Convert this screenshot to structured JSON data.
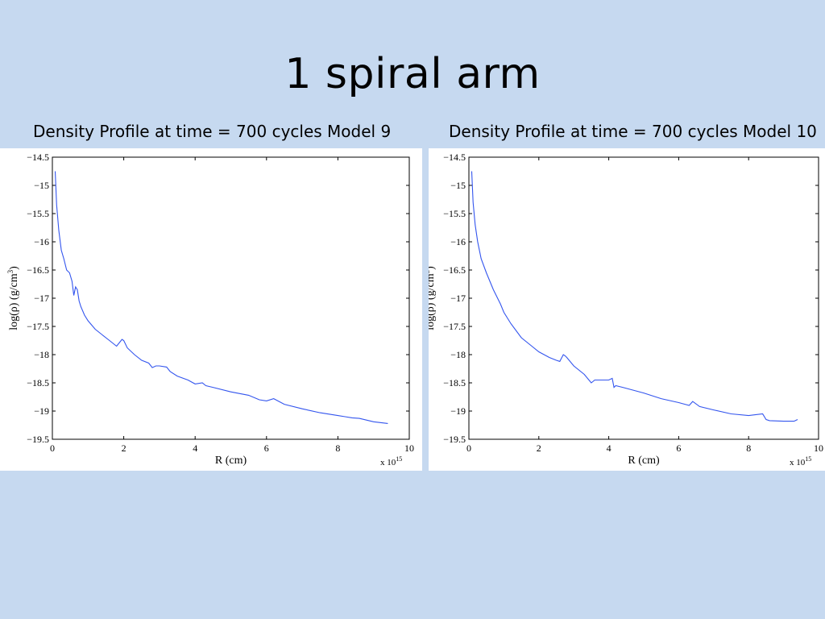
{
  "slide": {
    "title": "1 spiral arm"
  },
  "colors": {
    "background": "#c6d9f0",
    "line": "#3355ee"
  },
  "chart_data": [
    {
      "type": "line",
      "title": "Density Profile at time = 700 cycles Model 9",
      "xlabel": "R (cm)",
      "ylabel": "log(ρ) (g/cm3)",
      "x_multiplier": "x 10",
      "x_exponent": "15",
      "xlim": [
        0,
        10
      ],
      "ylim": [
        -19.5,
        -14.5
      ],
      "xticks": [
        "0",
        "2",
        "4",
        "6",
        "8",
        "10"
      ],
      "yticks": [
        "-14.5",
        "-15",
        "-15.5",
        "-16",
        "-16.5",
        "-17",
        "-17.5",
        "-18",
        "-18.5",
        "-19",
        "-19.5"
      ],
      "grid": false,
      "series": [
        {
          "x": [
            0.08,
            0.12,
            0.18,
            0.25,
            0.32,
            0.4,
            0.48,
            0.55,
            0.6,
            0.65,
            0.7,
            0.75,
            0.8,
            0.9,
            1.0,
            1.2,
            1.4,
            1.6,
            1.8,
            1.95,
            2.0,
            2.1,
            2.3,
            2.5,
            2.7,
            2.8,
            2.9,
            3.0,
            3.2,
            3.3,
            3.5,
            3.8,
            4.0,
            4.2,
            4.3,
            4.5,
            5.0,
            5.5,
            5.8,
            6.0,
            6.2,
            6.5,
            7.0,
            7.5,
            8.0,
            8.2,
            8.4,
            8.6,
            9.0,
            9.4
          ],
          "y": [
            -14.75,
            -15.35,
            -15.8,
            -16.15,
            -16.3,
            -16.5,
            -16.55,
            -16.7,
            -16.95,
            -16.8,
            -16.85,
            -17.05,
            -17.15,
            -17.3,
            -17.4,
            -17.55,
            -17.65,
            -17.75,
            -17.85,
            -17.73,
            -17.75,
            -17.88,
            -18.0,
            -18.1,
            -18.15,
            -18.23,
            -18.2,
            -18.2,
            -18.22,
            -18.3,
            -18.38,
            -18.45,
            -18.52,
            -18.5,
            -18.55,
            -18.58,
            -18.66,
            -18.72,
            -18.8,
            -18.82,
            -18.78,
            -18.88,
            -18.96,
            -19.03,
            -19.08,
            -19.1,
            -19.12,
            -19.13,
            -19.19,
            -19.22
          ]
        }
      ]
    },
    {
      "type": "line",
      "title": "Density Profile at time = 700 cycles Model 10",
      "xlabel": "R (cm)",
      "ylabel": "log(ρ) (g/cm3)",
      "x_multiplier": "x 10",
      "x_exponent": "15",
      "xlim": [
        0,
        10
      ],
      "ylim": [
        -19.5,
        -14.5
      ],
      "xticks": [
        "0",
        "2",
        "4",
        "6",
        "8",
        "10"
      ],
      "yticks": [
        "-14.5",
        "-15",
        "-15.5",
        "-16",
        "-16.5",
        "-17",
        "-17.5",
        "-18",
        "-18.5",
        "-19",
        "-19.5"
      ],
      "grid": false,
      "series": [
        {
          "x": [
            0.08,
            0.12,
            0.18,
            0.25,
            0.35,
            0.5,
            0.7,
            0.9,
            1.0,
            1.2,
            1.5,
            1.8,
            2.0,
            2.3,
            2.5,
            2.6,
            2.7,
            2.75,
            2.8,
            3.0,
            3.3,
            3.5,
            3.6,
            3.8,
            4.0,
            4.1,
            4.15,
            4.2,
            4.4,
            5.0,
            5.5,
            6.0,
            6.3,
            6.4,
            6.6,
            7.0,
            7.5,
            8.0,
            8.4,
            8.5,
            8.6,
            9.0,
            9.3,
            9.4
          ],
          "y": [
            -14.75,
            -15.3,
            -15.7,
            -16.0,
            -16.3,
            -16.55,
            -16.85,
            -17.1,
            -17.25,
            -17.45,
            -17.7,
            -17.85,
            -17.95,
            -18.05,
            -18.1,
            -18.12,
            -18.0,
            -18.02,
            -18.05,
            -18.2,
            -18.35,
            -18.5,
            -18.45,
            -18.45,
            -18.45,
            -18.42,
            -18.58,
            -18.55,
            -18.58,
            -18.68,
            -18.78,
            -18.85,
            -18.9,
            -18.83,
            -18.92,
            -18.98,
            -19.05,
            -19.08,
            -19.05,
            -19.15,
            -19.17,
            -19.18,
            -19.18,
            -19.15
          ]
        }
      ]
    }
  ]
}
